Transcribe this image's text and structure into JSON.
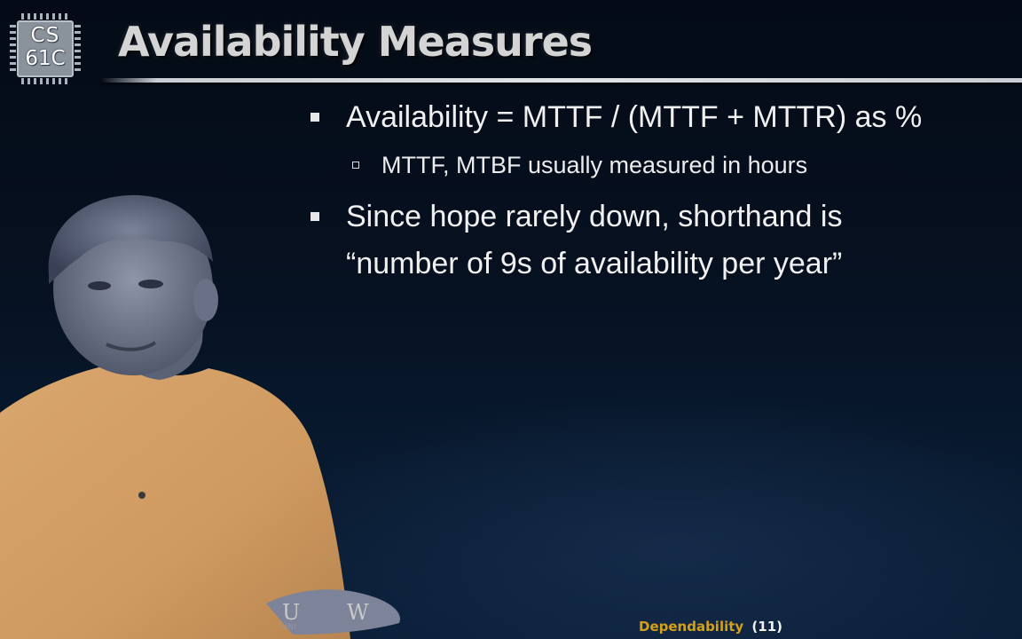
{
  "logo": {
    "line1": "CS",
    "line2": "61C"
  },
  "slide": {
    "title": "Availability Measures",
    "bullets": [
      {
        "level": 1,
        "text": "Availability = MTTF / (MTTF + MTTR) as %"
      },
      {
        "level": 2,
        "text": "MTTF, MTBF usually measured in hours"
      },
      {
        "level": 1,
        "lines": [
          "Since hope rarely down, shorthand is",
          "“number of 9s of availability per year”"
        ]
      }
    ]
  },
  "footer": {
    "topic": "Dependability",
    "page": "(11)"
  },
  "colors": {
    "background": "#06101f",
    "title": "#d4d4d4",
    "body_text": "#f0f0f0",
    "footer_topic": "#d4a017",
    "presenter_shirt": "#d7a46c"
  }
}
